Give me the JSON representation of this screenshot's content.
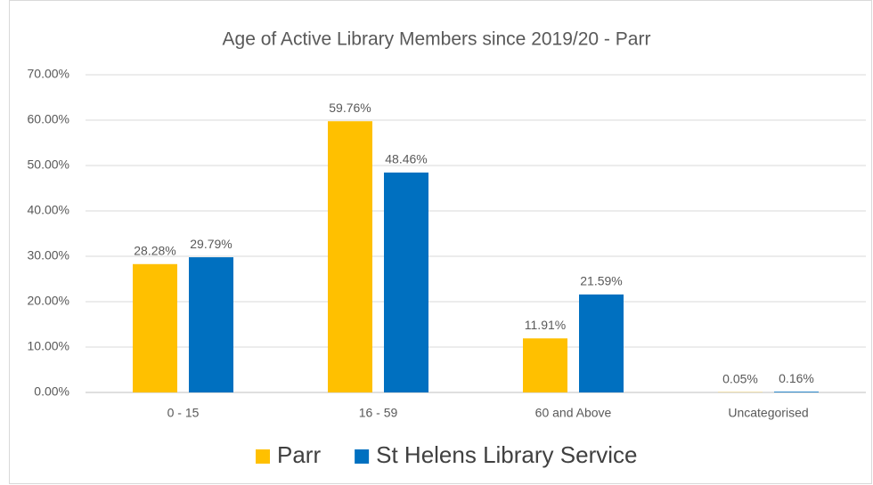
{
  "chart_data": {
    "type": "bar",
    "title": "Age of Active Library Members since 2019/20 - Parr",
    "categories": [
      "0 - 15",
      "16 - 59",
      "60 and Above",
      "Uncategorised"
    ],
    "series": [
      {
        "name": "Parr",
        "color": "#ffc000",
        "values": [
          28.28,
          59.76,
          11.91,
          0.05
        ],
        "value_labels": [
          "28.28%",
          "59.76%",
          "11.91%",
          "0.05%"
        ]
      },
      {
        "name": "St Helens Library Service",
        "color": "#0070c0",
        "values": [
          29.79,
          48.46,
          21.59,
          0.16
        ],
        "value_labels": [
          "29.79%",
          "48.46%",
          "21.59%",
          "0.16%"
        ]
      }
    ],
    "ylim": [
      0,
      70
    ],
    "yticks": [
      {
        "value": 0,
        "label": "0.00%"
      },
      {
        "value": 10,
        "label": "10.00%"
      },
      {
        "value": 20,
        "label": "20.00%"
      },
      {
        "value": 30,
        "label": "30.00%"
      },
      {
        "value": 40,
        "label": "40.00%"
      },
      {
        "value": 50,
        "label": "50.00%"
      },
      {
        "value": 60,
        "label": "60.00%"
      },
      {
        "value": 70,
        "label": "70.00%"
      }
    ],
    "grid": true,
    "legend": "bottom"
  }
}
